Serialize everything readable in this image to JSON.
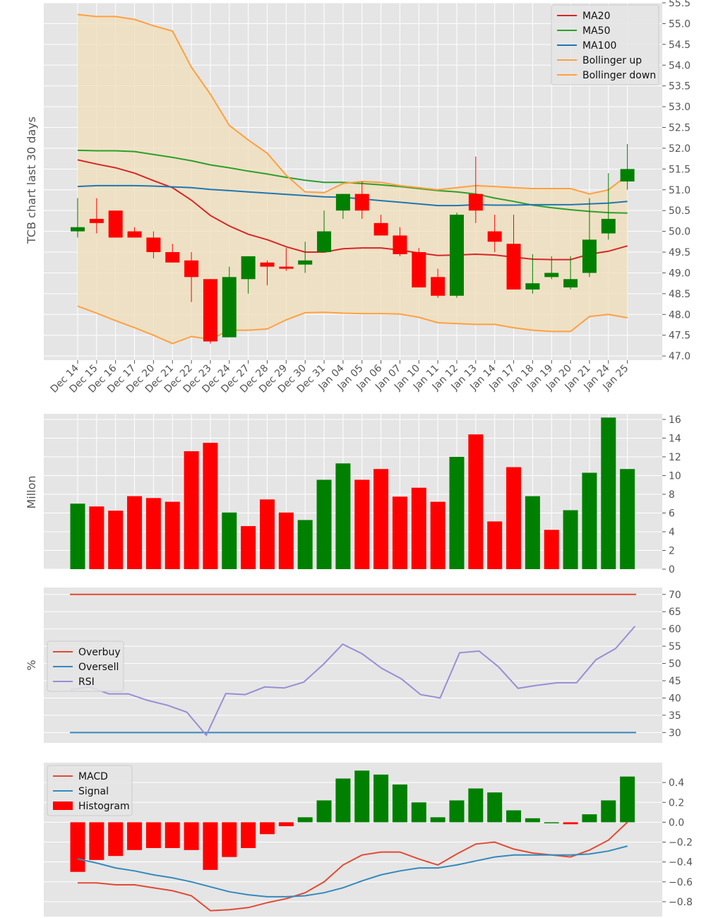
{
  "colors": {
    "panel_bg": "#e5e5e5",
    "grid": "#ffffff",
    "up": "#008000",
    "down": "#ff0000",
    "ma20": "#d62728",
    "ma50": "#2ca02c",
    "ma100": "#1f77b4",
    "bollinger": "#ffa040",
    "band_fill": "#f0deb8",
    "overbuy": "#e24a33",
    "oversell": "#348abd",
    "rsi": "#988ed5",
    "macd": "#e24a33",
    "signal": "#348abd",
    "hist_legend": "#ff0000"
  },
  "chart_data": [
    {
      "type": "candlestick",
      "ylabel": "TCB chart last 30 days",
      "ylim": [
        46.9,
        55.5
      ],
      "y_ticks": [
        "47.0",
        "47.5",
        "48.0",
        "48.5",
        "49.0",
        "49.5",
        "50.0",
        "50.5",
        "51.0",
        "51.5",
        "52.0",
        "52.5",
        "53.0",
        "53.5",
        "54.0",
        "54.5",
        "55.0",
        "55.5"
      ],
      "dates": [
        "Dec 14",
        "Dec 15",
        "Dec 16",
        "Dec 17",
        "Dec 20",
        "Dec 21",
        "Dec 22",
        "Dec 23",
        "Dec 24",
        "Dec 27",
        "Dec 28",
        "Dec 29",
        "Dec 30",
        "Dec 31",
        "Jan 04",
        "Jan 05",
        "Jan 06",
        "Jan 07",
        "Jan 10",
        "Jan 11",
        "Jan 12",
        "Jan 13",
        "Jan 14",
        "Jan 17",
        "Jan 18",
        "Jan 19",
        "Jan 20",
        "Jan 21",
        "Jan 24",
        "Jan 25"
      ],
      "open": [
        50.0,
        50.3,
        50.5,
        50.0,
        49.85,
        49.5,
        49.3,
        48.85,
        47.45,
        48.85,
        49.25,
        49.15,
        49.2,
        49.5,
        50.5,
        50.9,
        50.2,
        49.9,
        49.5,
        48.9,
        48.45,
        50.9,
        50.0,
        49.7,
        48.6,
        48.9,
        48.65,
        49.0,
        49.95,
        51.2
      ],
      "high": [
        50.8,
        50.8,
        50.5,
        50.1,
        50.0,
        49.7,
        49.5,
        48.85,
        49.15,
        49.4,
        49.3,
        49.6,
        49.75,
        50.5,
        50.9,
        51.2,
        50.4,
        50.1,
        49.6,
        49.1,
        50.45,
        51.8,
        50.4,
        50.4,
        49.45,
        49.4,
        49.4,
        50.8,
        51.4,
        52.1
      ],
      "low": [
        49.85,
        49.95,
        49.85,
        49.85,
        49.35,
        49.25,
        48.3,
        47.3,
        47.45,
        48.5,
        48.7,
        49.05,
        49.0,
        49.5,
        50.3,
        50.3,
        49.9,
        49.4,
        48.65,
        48.4,
        48.4,
        50.2,
        49.5,
        48.6,
        48.5,
        48.85,
        48.6,
        48.9,
        49.8,
        51.0
      ],
      "close": [
        50.1,
        50.2,
        49.85,
        49.85,
        49.5,
        49.25,
        48.9,
        47.35,
        48.9,
        49.4,
        49.15,
        49.1,
        49.3,
        50.0,
        50.9,
        50.5,
        49.9,
        49.45,
        48.65,
        48.45,
        50.4,
        50.5,
        49.75,
        48.6,
        48.75,
        49.0,
        48.85,
        49.8,
        50.3,
        51.5
      ],
      "series": [
        {
          "name": "MA20",
          "values": [
            51.72,
            51.62,
            51.53,
            51.4,
            51.22,
            51.05,
            50.75,
            50.38,
            50.13,
            49.93,
            49.8,
            49.63,
            49.5,
            49.5,
            49.58,
            49.6,
            49.6,
            49.55,
            49.48,
            49.42,
            49.43,
            49.45,
            49.43,
            49.38,
            49.33,
            49.32,
            49.32,
            49.45,
            49.52,
            49.65
          ]
        },
        {
          "name": "MA50",
          "values": [
            51.95,
            51.94,
            51.94,
            51.92,
            51.85,
            51.78,
            51.7,
            51.6,
            51.53,
            51.45,
            51.38,
            51.3,
            51.23,
            51.18,
            51.18,
            51.15,
            51.12,
            51.08,
            51.03,
            50.98,
            50.95,
            50.9,
            50.8,
            50.72,
            50.63,
            50.57,
            50.52,
            50.48,
            50.45,
            50.44
          ]
        },
        {
          "name": "MA100",
          "values": [
            51.08,
            51.1,
            51.1,
            51.1,
            51.09,
            51.07,
            51.05,
            51.01,
            50.98,
            50.95,
            50.92,
            50.89,
            50.86,
            50.83,
            50.82,
            50.78,
            50.74,
            50.7,
            50.66,
            50.62,
            50.62,
            50.64,
            50.63,
            50.63,
            50.64,
            50.64,
            50.64,
            50.66,
            50.68,
            50.72
          ]
        },
        {
          "name": "Bollinger up",
          "values": [
            55.22,
            55.17,
            55.17,
            55.1,
            54.95,
            54.82,
            53.95,
            53.3,
            52.55,
            52.2,
            51.88,
            51.35,
            50.95,
            50.93,
            51.15,
            51.2,
            51.18,
            51.1,
            51.05,
            51.0,
            51.05,
            51.1,
            51.08,
            51.05,
            51.03,
            51.03,
            51.03,
            50.9,
            51.0,
            51.35
          ]
        },
        {
          "name": "Bollinger down",
          "values": [
            48.2,
            48.03,
            47.85,
            47.68,
            47.5,
            47.3,
            47.47,
            47.4,
            47.62,
            47.62,
            47.65,
            47.87,
            48.04,
            48.05,
            48.03,
            48.02,
            48.02,
            48.01,
            47.93,
            47.8,
            47.78,
            47.76,
            47.76,
            47.68,
            47.62,
            47.59,
            47.59,
            47.95,
            48.0,
            47.92
          ]
        }
      ],
      "legend_position": "top-right",
      "grid": true
    },
    {
      "type": "bar",
      "ylabel": "Millon",
      "ylim": [
        0,
        16.6
      ],
      "y_ticks": [
        "0",
        "2",
        "4",
        "6",
        "8",
        "10",
        "12",
        "14",
        "16"
      ],
      "values": [
        7.0,
        6.7,
        6.25,
        7.8,
        7.6,
        7.2,
        12.6,
        13.5,
        6.05,
        4.6,
        7.45,
        6.05,
        5.25,
        9.55,
        11.3,
        9.55,
        10.7,
        7.75,
        8.7,
        7.2,
        12.0,
        14.4,
        5.1,
        10.9,
        7.8,
        4.2,
        6.3,
        10.3,
        16.2,
        10.7
      ],
      "colors": [
        "up",
        "down",
        "down",
        "down",
        "down",
        "down",
        "down",
        "down",
        "up",
        "down",
        "down",
        "down",
        "up",
        "up",
        "up",
        "down",
        "down",
        "down",
        "down",
        "down",
        "up",
        "down",
        "down",
        "down",
        "up",
        "down",
        "up",
        "up",
        "up",
        "up"
      ],
      "grid": true
    },
    {
      "type": "line",
      "ylabel": "%",
      "ylim": [
        27,
        72
      ],
      "y_ticks": [
        "30",
        "35",
        "40",
        "45",
        "50",
        "55",
        "60",
        "65",
        "70"
      ],
      "series": [
        {
          "name": "Overbuy",
          "values": [
            70,
            70,
            70,
            70,
            70,
            70,
            70,
            70,
            70,
            70,
            70,
            70,
            70,
            70,
            70,
            70,
            70,
            70,
            70,
            70,
            70,
            70,
            70,
            70,
            70,
            70,
            70,
            70,
            70,
            70
          ]
        },
        {
          "name": "Oversell",
          "values": [
            30,
            30,
            30,
            30,
            30,
            30,
            30,
            30,
            30,
            30,
            30,
            30,
            30,
            30,
            30,
            30,
            30,
            30,
            30,
            30,
            30,
            30,
            30,
            30,
            30,
            30,
            30,
            30,
            30,
            30
          ]
        },
        {
          "name": "RSI",
          "values": [
            42.4,
            43.2,
            41.2,
            41.2,
            39.3,
            37.9,
            35.9,
            29.2,
            41.3,
            41.0,
            43.2,
            42.9,
            44.6,
            49.7,
            55.6,
            52.8,
            48.6,
            45.6,
            41.0,
            40.0,
            53.1,
            53.6,
            49.0,
            42.8,
            43.7,
            44.4,
            44.4,
            51.1,
            54.3,
            60.8
          ]
        }
      ],
      "legend_position": "middle-left",
      "grid": true
    },
    {
      "type": "bar+line",
      "ylim": [
        -0.95,
        0.6
      ],
      "y_ticks": [
        "0.4",
        "0.2",
        "0.0",
        "−0.2",
        "−0.4",
        "−0.6",
        "−0.8"
      ],
      "y_tick_values": [
        0.4,
        0.2,
        0.0,
        -0.2,
        -0.4,
        -0.6,
        -0.8
      ],
      "series": [
        {
          "name": "MACD",
          "values": [
            -0.61,
            -0.61,
            -0.63,
            -0.63,
            -0.66,
            -0.69,
            -0.74,
            -0.89,
            -0.88,
            -0.86,
            -0.81,
            -0.77,
            -0.71,
            -0.6,
            -0.43,
            -0.33,
            -0.3,
            -0.3,
            -0.37,
            -0.43,
            -0.32,
            -0.22,
            -0.2,
            -0.27,
            -0.31,
            -0.33,
            -0.35,
            -0.28,
            -0.18,
            0.0
          ]
        },
        {
          "name": "Signal",
          "values": [
            -0.37,
            -0.41,
            -0.46,
            -0.49,
            -0.53,
            -0.56,
            -0.6,
            -0.65,
            -0.7,
            -0.73,
            -0.75,
            -0.75,
            -0.74,
            -0.71,
            -0.66,
            -0.59,
            -0.53,
            -0.49,
            -0.46,
            -0.46,
            -0.43,
            -0.39,
            -0.35,
            -0.33,
            -0.33,
            -0.33,
            -0.33,
            -0.32,
            -0.29,
            -0.24
          ]
        },
        {
          "name": "Histogram",
          "values": [
            -0.5,
            -0.38,
            -0.34,
            -0.28,
            -0.26,
            -0.26,
            -0.28,
            -0.48,
            -0.35,
            -0.26,
            -0.12,
            -0.04,
            0.05,
            0.22,
            0.44,
            0.52,
            0.48,
            0.38,
            0.2,
            0.05,
            0.22,
            0.34,
            0.3,
            0.12,
            0.04,
            0.0,
            -0.02,
            0.08,
            0.22,
            0.46
          ],
          "colors": [
            "down",
            "down",
            "down",
            "down",
            "down",
            "down",
            "down",
            "down",
            "down",
            "down",
            "down",
            "down",
            "up",
            "up",
            "up",
            "up",
            "up",
            "up",
            "up",
            "up",
            "up",
            "up",
            "up",
            "up",
            "up",
            "up",
            "down",
            "up",
            "up",
            "up"
          ]
        }
      ],
      "legend_position": "top-left",
      "grid": true
    }
  ]
}
